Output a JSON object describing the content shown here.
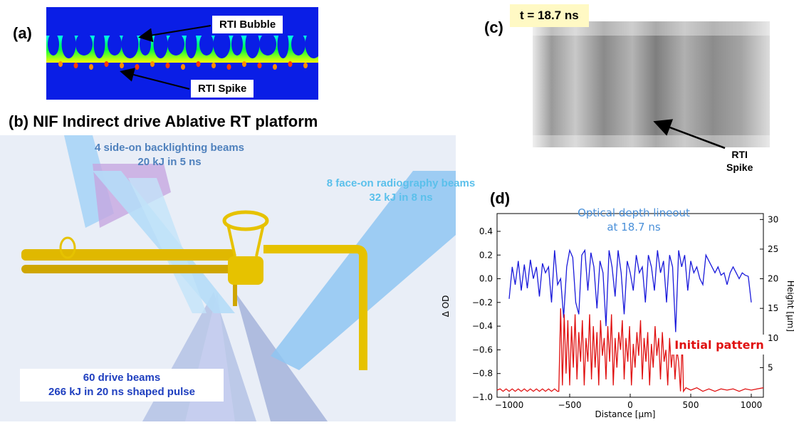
{
  "panel_a": {
    "label": "(a)",
    "bubble_label": "RTI Bubble",
    "spike_label": "RTI Spike"
  },
  "panel_b": {
    "label": "(b) NIF Indirect drive Ablative RT platform",
    "backlight_line1": "4 side-on backlighting beams",
    "backlight_line2": "20 kJ in 5 ns",
    "radiography_line1": "8 face-on radiography beams",
    "radiography_line2": "32 kJ in 8 ns",
    "drive_line1": "60 drive beams",
    "drive_line2": "266 kJ in 20 ns shaped pulse",
    "colors": {
      "backlight_text": "#4f81bd",
      "radiography_text": "#5bc0eb",
      "drive_text": "#1f3fbf",
      "target": "#e6c200"
    }
  },
  "panel_c": {
    "label": "(c)",
    "time_label": "t = 18.7 ns",
    "spike_label_line1": "RTI",
    "spike_label_line2": "Spike"
  },
  "panel_d": {
    "label": "(d)",
    "chart_data": {
      "type": "line",
      "xlabel": "Distance [μm]",
      "ylabel": "Δ OD",
      "y2label": "Height [μm]",
      "xlim": [
        -1100,
        1100
      ],
      "ylim": [
        -1.0,
        0.55
      ],
      "y2lim": [
        0,
        31
      ],
      "xticks": [
        -1000,
        -500,
        0,
        500,
        1000
      ],
      "yticks": [
        -1.0,
        -0.8,
        -0.6,
        -0.4,
        -0.2,
        0.0,
        0.2,
        0.4
      ],
      "y2ticks": [
        5,
        10,
        15,
        20,
        25,
        30
      ],
      "series": [
        {
          "name": "Optical depth lineout at 18.7 ns",
          "name_line1": "Optical depth lineout",
          "name_line2": "at 18.7 ns",
          "color": "#1a1adb",
          "x": [
            -1000,
            -975,
            -950,
            -925,
            -900,
            -875,
            -850,
            -825,
            -800,
            -775,
            -750,
            -725,
            -700,
            -675,
            -650,
            -625,
            -600,
            -575,
            -550,
            -525,
            -500,
            -475,
            -450,
            -425,
            -400,
            -375,
            -350,
            -325,
            -300,
            -275,
            -250,
            -225,
            -200,
            -175,
            -150,
            -125,
            -100,
            -75,
            -50,
            -25,
            0,
            25,
            50,
            75,
            100,
            125,
            150,
            175,
            200,
            225,
            250,
            275,
            300,
            325,
            350,
            375,
            400,
            425,
            450,
            475,
            500,
            525,
            550,
            575,
            600,
            625,
            650,
            675,
            700,
            725,
            750,
            775,
            800,
            825,
            850,
            875,
            900,
            925,
            950,
            975,
            1000
          ],
          "y": [
            -0.17,
            0.1,
            -0.05,
            0.15,
            -0.1,
            0.12,
            -0.08,
            0.16,
            0.0,
            0.1,
            -0.15,
            0.13,
            0.05,
            0.1,
            -0.2,
            0.24,
            -0.05,
            0.0,
            -0.33,
            0.1,
            0.24,
            0.18,
            -0.2,
            -0.3,
            0.2,
            0.24,
            -0.1,
            0.22,
            0.1,
            -0.25,
            0.15,
            0.05,
            -0.4,
            0.24,
            0.1,
            -0.15,
            0.24,
            0.05,
            -0.3,
            0.15,
            0.05,
            -0.1,
            0.2,
            0.05,
            0.1,
            -0.2,
            0.2,
            0.1,
            -0.1,
            0.24,
            0.05,
            0.15,
            -0.2,
            0.2,
            0.1,
            -0.45,
            0.24,
            0.1,
            0.2,
            -0.1,
            0.15,
            0.05,
            0.1,
            0.0,
            -0.05,
            0.2,
            0.15,
            0.1,
            0.05,
            0.1,
            0.03,
            0.05,
            -0.05,
            0.05,
            0.1,
            0.05,
            0.0,
            0.05,
            0.03,
            0.02,
            -0.2
          ]
        },
        {
          "name": "Initial pattern",
          "color": "#e01010",
          "x": [
            -1100,
            -1075,
            -1050,
            -1025,
            -1000,
            -975,
            -950,
            -925,
            -900,
            -875,
            -850,
            -825,
            -800,
            -775,
            -750,
            -725,
            -700,
            -675,
            -650,
            -625,
            -600,
            -590,
            -575,
            -560,
            -545,
            -530,
            -515,
            -500,
            -485,
            -470,
            -455,
            -440,
            -425,
            -410,
            -395,
            -380,
            -365,
            -350,
            -335,
            -320,
            -305,
            -290,
            -275,
            -260,
            -245,
            -230,
            -215,
            -200,
            -185,
            -170,
            -155,
            -140,
            -125,
            -110,
            -95,
            -80,
            -65,
            -50,
            -35,
            -20,
            -5,
            10,
            25,
            40,
            55,
            70,
            85,
            100,
            115,
            130,
            145,
            160,
            175,
            190,
            205,
            220,
            235,
            250,
            265,
            280,
            295,
            310,
            325,
            340,
            355,
            370,
            385,
            400,
            415,
            430,
            440,
            460,
            500,
            550,
            600,
            650,
            700,
            750,
            800,
            850,
            900,
            950,
            1000,
            1050,
            1100
          ],
          "y": [
            -0.94,
            -0.93,
            -0.95,
            -0.93,
            -0.95,
            -0.93,
            -0.95,
            -0.93,
            -0.95,
            -0.93,
            -0.95,
            -0.93,
            -0.95,
            -0.93,
            -0.95,
            -0.93,
            -0.95,
            -0.93,
            -0.95,
            -0.93,
            -0.95,
            -0.95,
            -0.25,
            -0.9,
            -0.3,
            -0.8,
            -0.35,
            -0.9,
            -0.4,
            -0.75,
            -0.3,
            -0.85,
            -0.45,
            -0.7,
            -0.35,
            -0.9,
            -0.5,
            -0.7,
            -0.3,
            -0.85,
            -0.4,
            -0.75,
            -0.45,
            -0.9,
            -0.35,
            -0.65,
            -0.5,
            -0.85,
            -0.4,
            -0.7,
            -0.3,
            -0.9,
            -0.5,
            -0.75,
            -0.45,
            -0.6,
            -0.35,
            -0.85,
            -0.5,
            -0.7,
            -0.4,
            -0.9,
            -0.55,
            -0.75,
            -0.45,
            -0.65,
            -0.35,
            -0.85,
            -0.5,
            -0.7,
            -0.45,
            -0.9,
            -0.55,
            -0.75,
            -0.4,
            -0.65,
            -0.5,
            -0.85,
            -0.45,
            -0.7,
            -0.6,
            -0.9,
            -0.5,
            -0.75,
            -0.55,
            -0.85,
            -0.6,
            -0.7,
            -0.95,
            -0.5,
            -0.95,
            -0.92,
            -0.94,
            -0.92,
            -0.95,
            -0.93,
            -0.95,
            -0.93,
            -0.94,
            -0.93,
            -0.95,
            -0.93,
            -0.94,
            -0.93,
            -0.92
          ]
        }
      ]
    }
  }
}
